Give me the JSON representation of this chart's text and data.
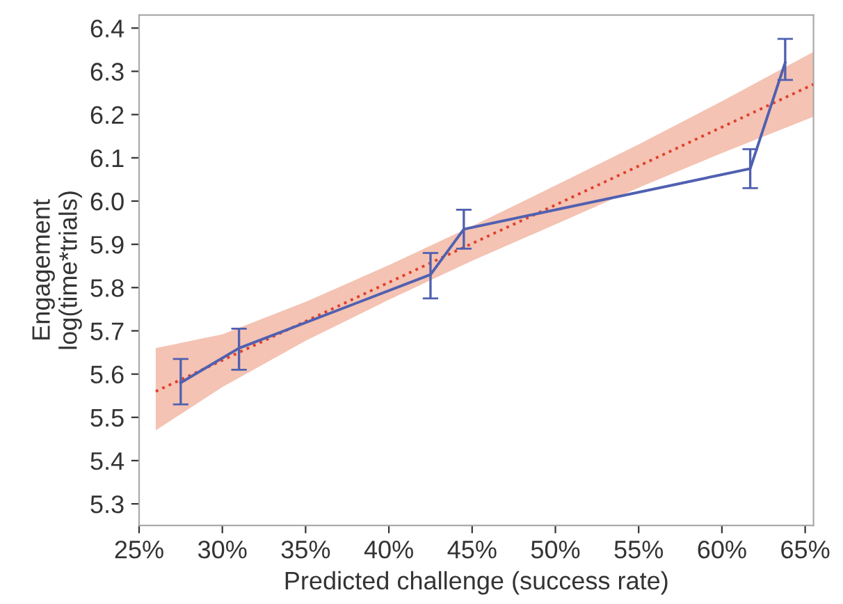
{
  "chart_data": {
    "type": "line",
    "xlabel": "Predicted challenge (success rate)",
    "ylabel": "Engagement\nlog(time*trials)",
    "xlim": [
      25,
      65.5
    ],
    "ylim": [
      5.25,
      6.43
    ],
    "xticks": [
      {
        "value": 25,
        "label": "25%"
      },
      {
        "value": 30,
        "label": "30%"
      },
      {
        "value": 35,
        "label": "35%"
      },
      {
        "value": 40,
        "label": "40%"
      },
      {
        "value": 45,
        "label": "45%"
      },
      {
        "value": 50,
        "label": "50%"
      },
      {
        "value": 55,
        "label": "55%"
      },
      {
        "value": 60,
        "label": "60%"
      },
      {
        "value": 65,
        "label": "65%"
      }
    ],
    "yticks": [
      {
        "value": 5.3,
        "label": "5.3"
      },
      {
        "value": 5.4,
        "label": "5.4"
      },
      {
        "value": 5.5,
        "label": "5.5"
      },
      {
        "value": 5.6,
        "label": "5.6"
      },
      {
        "value": 5.7,
        "label": "5.7"
      },
      {
        "value": 5.8,
        "label": "5.8"
      },
      {
        "value": 5.9,
        "label": "5.9"
      },
      {
        "value": 6.0,
        "label": "6.0"
      },
      {
        "value": 6.1,
        "label": "6.1"
      },
      {
        "value": 6.2,
        "label": "6.2"
      },
      {
        "value": 6.3,
        "label": "6.3"
      },
      {
        "value": 6.4,
        "label": "6.4"
      }
    ],
    "grid": false,
    "legend": false,
    "series": [
      {
        "color": "#e0402a",
        "line_style": "dotted",
        "marker": "none",
        "x": [
          26,
          30,
          35,
          40,
          45,
          50,
          55,
          60,
          65.5
        ],
        "values": [
          5.56,
          5.632,
          5.722,
          5.812,
          5.902,
          5.991,
          6.081,
          6.171,
          6.27
        ],
        "lower": [
          5.47,
          5.57,
          5.677,
          5.772,
          5.862,
          5.946,
          6.031,
          6.111,
          6.195
        ],
        "upper": [
          5.66,
          5.692,
          5.767,
          5.852,
          5.942,
          6.036,
          6.131,
          6.231,
          6.345
        ]
      },
      {
        "color": "#5060b0",
        "line_style": "solid",
        "marker": "none",
        "x": [
          27.5,
          31,
          42.5,
          44.5,
          61.7,
          63.8
        ],
        "values": [
          5.58,
          5.66,
          5.83,
          5.935,
          6.075,
          6.32
        ],
        "errors": [
          [
            5.53,
            5.635
          ],
          [
            5.61,
            5.705
          ],
          [
            5.775,
            5.88
          ],
          [
            5.89,
            5.98
          ],
          [
            6.03,
            6.12
          ],
          [
            6.28,
            6.375
          ]
        ]
      }
    ]
  }
}
